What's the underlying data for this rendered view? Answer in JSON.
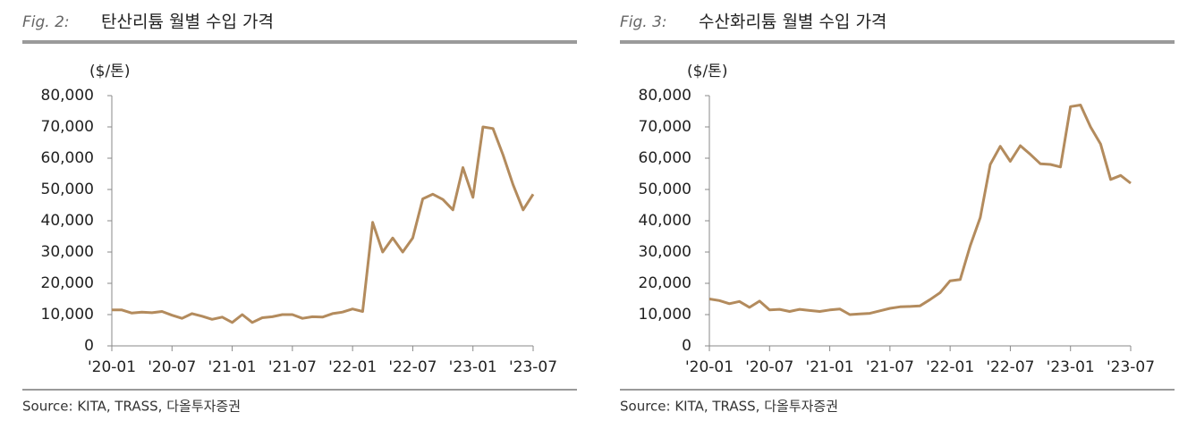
{
  "chart_data": [
    {
      "type": "line",
      "figure_label": "Fig. 2:",
      "title": "탄산리튬 월별 수입 가격",
      "y_unit": "($/톤)",
      "source": "Source: KITA, TRASS, 다올투자증권",
      "categories": [
        "'20-01",
        null,
        null,
        null,
        null,
        null,
        "'20-07",
        null,
        null,
        null,
        null,
        null,
        "'21-01",
        null,
        null,
        null,
        null,
        null,
        "'21-07",
        null,
        null,
        null,
        null,
        null,
        "'22-01",
        null,
        null,
        null,
        null,
        null,
        "'22-07",
        null,
        null,
        null,
        null,
        null,
        "'23-01",
        null,
        null,
        null,
        null,
        null,
        "'23-07"
      ],
      "series": [
        {
          "name": "탄산리튬",
          "color": "#b38b5d",
          "values": [
            11500,
            11500,
            10500,
            10800,
            10600,
            11000,
            9800,
            8800,
            10300,
            9500,
            8500,
            9200,
            7500,
            10000,
            7500,
            9000,
            9300,
            10000,
            10000,
            8800,
            9300,
            9200,
            10300,
            10800,
            11800,
            11000,
            39500,
            30000,
            34500,
            30000,
            34500,
            47000,
            48500,
            46800,
            43500,
            57000,
            47500,
            70000,
            69500,
            61000,
            51500,
            43500,
            48500
          ]
        }
      ],
      "ylim": [
        0,
        80000
      ],
      "yticks": [
        0,
        {
          "value": 10000,
          "label": "10,000"
        },
        {
          "value": 20000,
          "label": "20,000"
        },
        {
          "value": 30000,
          "label": "30,000"
        },
        {
          "value": 40000,
          "label": "40,000"
        },
        {
          "value": 50000,
          "label": "50,000"
        },
        {
          "value": 60000,
          "label": "60,000"
        },
        {
          "value": 70000,
          "label": "70,000"
        },
        {
          "value": 80000,
          "label": "80,000"
        }
      ]
    },
    {
      "type": "line",
      "figure_label": "Fig. 3:",
      "title": "수산화리튬 월별 수입 가격",
      "y_unit": "($/톤)",
      "source": "Source: KITA, TRASS, 다올투자증권",
      "categories": [
        "'20-01",
        null,
        null,
        null,
        null,
        null,
        "'20-07",
        null,
        null,
        null,
        null,
        null,
        "'21-01",
        null,
        null,
        null,
        null,
        null,
        "'21-07",
        null,
        null,
        null,
        null,
        null,
        "'22-01",
        null,
        null,
        null,
        null,
        null,
        "'22-07",
        null,
        null,
        null,
        null,
        null,
        "'23-01",
        null,
        null,
        null,
        null,
        null,
        "'23-07"
      ],
      "series": [
        {
          "name": "수산화리튬",
          "color": "#b38b5d",
          "values": [
            15000,
            14500,
            13500,
            14200,
            12300,
            14300,
            11500,
            11700,
            11000,
            11700,
            11300,
            11000,
            11500,
            11800,
            10000,
            10200,
            10400,
            11200,
            12000,
            12500,
            12600,
            12800,
            14800,
            17000,
            20800,
            21200,
            32000,
            41000,
            58000,
            63800,
            59000,
            64000,
            61200,
            58200,
            58000,
            57200,
            76500,
            77000,
            70000,
            64500,
            53200,
            54500,
            52000
          ]
        }
      ],
      "ylim": [
        0,
        80000
      ],
      "yticks": [
        0,
        {
          "value": 10000,
          "label": "10,000"
        },
        {
          "value": 20000,
          "label": "20,000"
        },
        {
          "value": 30000,
          "label": "30,000"
        },
        {
          "value": 40000,
          "label": "40,000"
        },
        {
          "value": 50000,
          "label": "50,000"
        },
        {
          "value": 60000,
          "label": "60,000"
        },
        {
          "value": 70000,
          "label": "70,000"
        },
        {
          "value": 80000,
          "label": "80,000"
        }
      ]
    }
  ]
}
